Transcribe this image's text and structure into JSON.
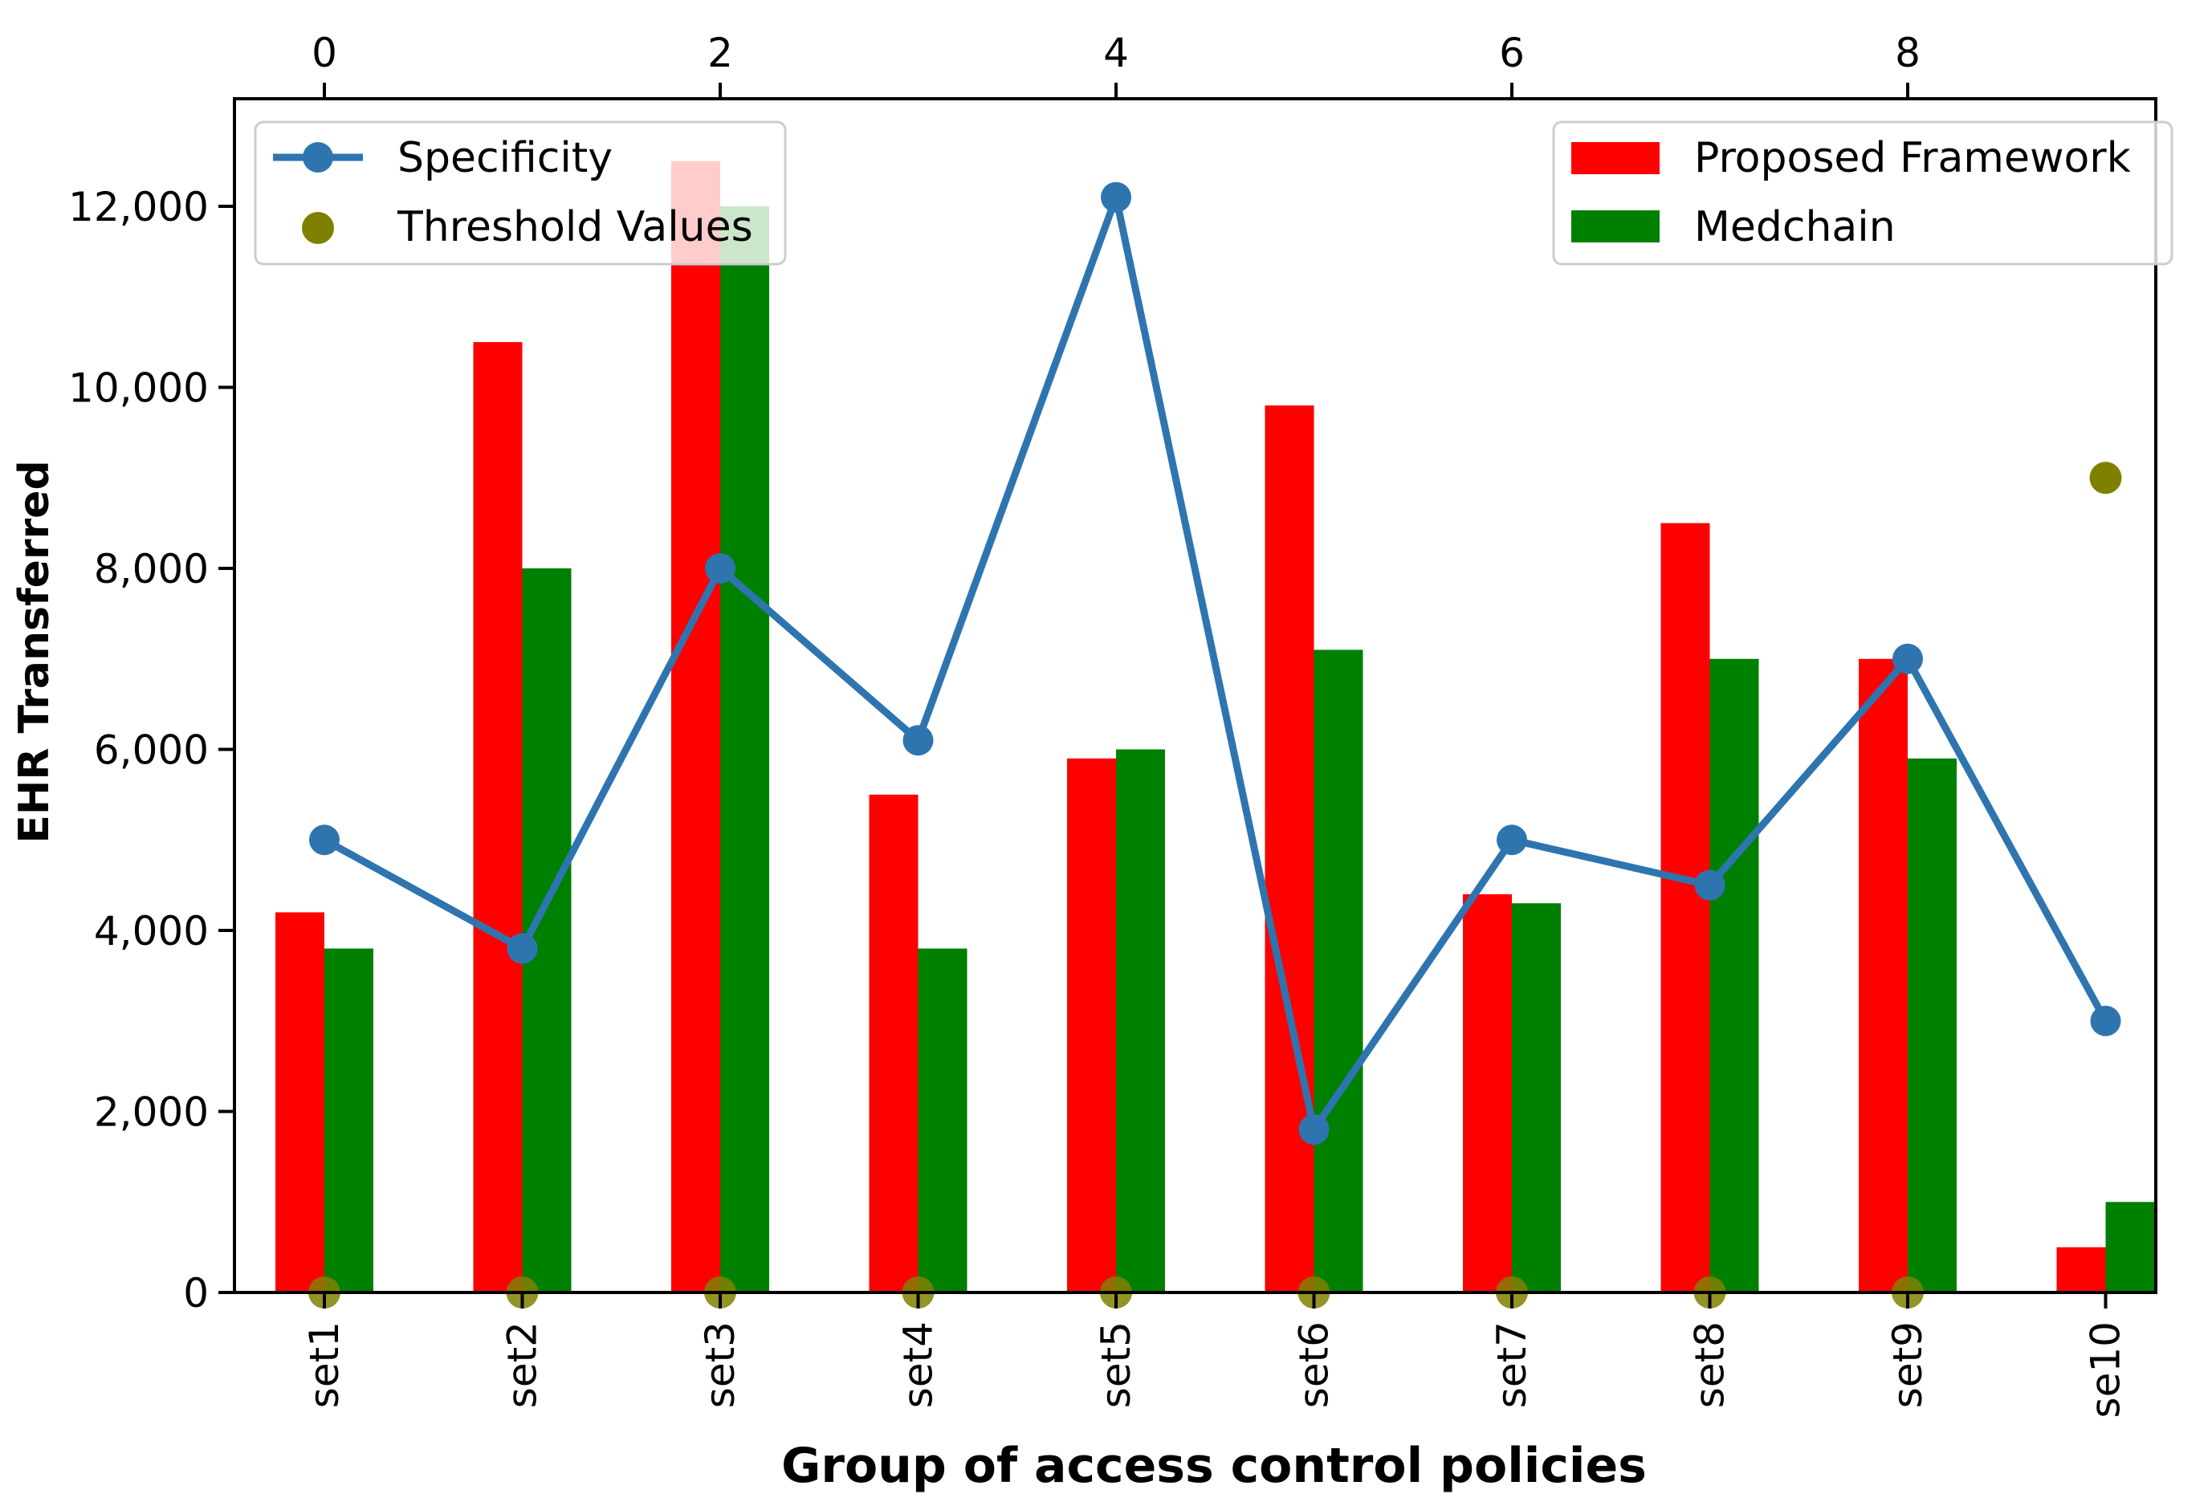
{
  "chart_data": {
    "type": "bar",
    "title": "",
    "xlabel": "Group of access control policies",
    "ylabel": "EHR Transferred",
    "categories": [
      "set1",
      "set2",
      "set3",
      "set4",
      "set5",
      "set6",
      "set7",
      "set8",
      "set9",
      "se10"
    ],
    "ylim": [
      0,
      13000
    ],
    "yticks": [
      0,
      2000,
      4000,
      6000,
      8000,
      10000,
      12000
    ],
    "ytick_labels": [
      "0",
      "2,000",
      "4,000",
      "6,000",
      "8,000",
      "10,000",
      "12,000"
    ],
    "top_xticks": [
      0,
      2,
      4,
      6,
      8
    ],
    "top_xtick_labels": [
      "0",
      "2",
      "4",
      "6",
      "8"
    ],
    "series": [
      {
        "name": "Proposed Framework",
        "kind": "bar",
        "color": "#ff0000",
        "values": [
          4200,
          10500,
          12500,
          5500,
          5900,
          9800,
          4400,
          8500,
          7000,
          500
        ]
      },
      {
        "name": "Medchain",
        "kind": "bar",
        "color": "#008000",
        "values": [
          3800,
          8000,
          12000,
          3800,
          6000,
          7100,
          4300,
          7000,
          5900,
          1000
        ]
      },
      {
        "name": "Specificity",
        "kind": "line",
        "color": "#2e75b0",
        "values": [
          5000,
          3800,
          8000,
          6100,
          12100,
          1800,
          5000,
          4500,
          7000,
          3000
        ]
      },
      {
        "name": "Threshold Values",
        "kind": "scatter",
        "color": "#808000",
        "values": [
          0,
          0,
          0,
          0,
          0,
          0,
          0,
          0,
          0,
          9000
        ]
      }
    ],
    "legend_left": {
      "placement": "top-left",
      "entries": [
        "Specificity",
        "Threshold Values"
      ]
    },
    "legend_right": {
      "placement": "top-right",
      "entries": [
        "Proposed Framework",
        "Medchain"
      ]
    }
  }
}
